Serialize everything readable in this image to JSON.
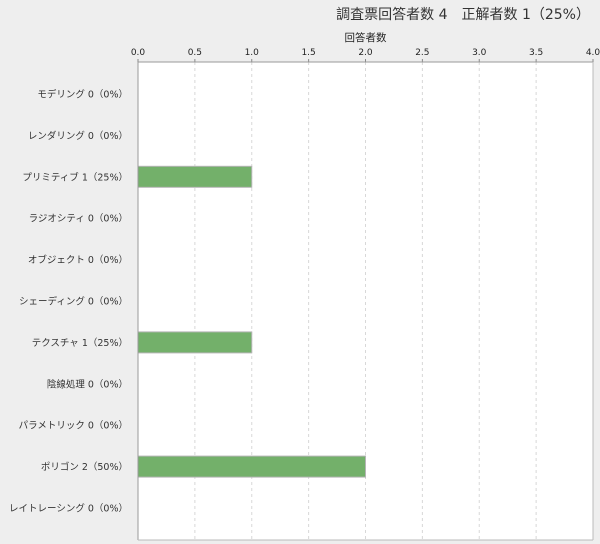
{
  "chart_data": {
    "type": "bar",
    "orientation": "horizontal",
    "title": "調査票回答者数 4　正解者数 1（25%）",
    "xlabel": "回答者数",
    "xlim": [
      0,
      4
    ],
    "ticks": [
      "0.0",
      "0.5",
      "1.0",
      "1.5",
      "2.0",
      "2.5",
      "3.0",
      "3.5",
      "4.0"
    ],
    "tick_values": [
      0,
      0.5,
      1,
      1.5,
      2,
      2.5,
      3,
      3.5,
      4
    ],
    "grid": true,
    "x_axis_position": "top",
    "categories": [
      "モデリング 0（0%）",
      "レンダリング 0（0%）",
      "プリミティブ 1（25%）",
      "ラジオシティ 0（0%）",
      "オブジェクト 0（0%）",
      "シェーディング 0（0%）",
      "テクスチャ 1（25%）",
      "陰線処理 0（0%）",
      "パラメトリック 0（0%）",
      "ポリゴン 2（50%）",
      "レイトレーシング 0（0%）"
    ],
    "values": [
      0,
      0,
      1,
      0,
      0,
      0,
      1,
      0,
      0,
      2,
      0
    ],
    "bar_color": "#73b06a"
  }
}
